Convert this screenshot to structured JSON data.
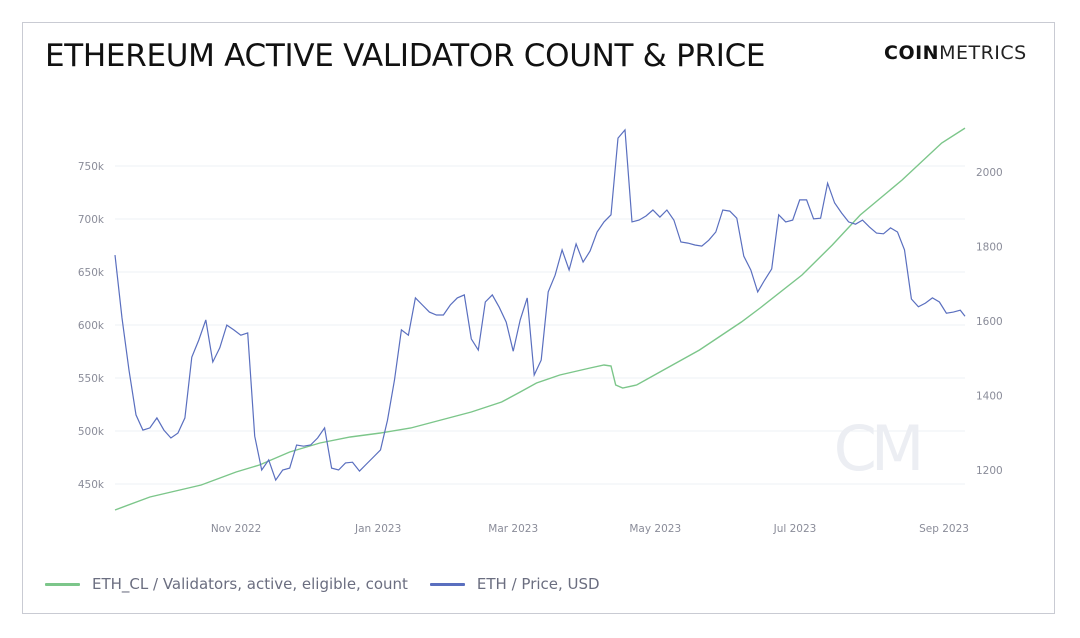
{
  "header": {
    "title": "ETHEREUM ACTIVE VALIDATOR COUNT & PRICE",
    "logo_bold": "COIN",
    "logo_light": "METRICS",
    "watermark": "CM"
  },
  "colors": {
    "validators": "#7cc68a",
    "price": "#5a6fbf",
    "grid": "#eef0f4",
    "tick_text": "#8a8c99"
  },
  "chart_data": {
    "type": "line",
    "title": "ETHEREUM ACTIVE VALIDATOR COUNT & PRICE",
    "xlabel": "",
    "x_unit": "days since ~10 Sep 2022",
    "x_range": [
      0,
      365
    ],
    "x_ticks": [
      {
        "label": "Nov 2022",
        "day": 52
      },
      {
        "label": "Jan 2023",
        "day": 113
      },
      {
        "label": "Mar 2023",
        "day": 171
      },
      {
        "label": "May 2023",
        "day": 232
      },
      {
        "label": "Jul 2023",
        "day": 292
      },
      {
        "label": "Sep 2023",
        "day": 356
      }
    ],
    "y_left": {
      "label": "Validators, active, eligible, count",
      "range": [
        420000,
        790000
      ],
      "ticks": [
        450000,
        500000,
        550000,
        600000,
        650000,
        700000,
        750000
      ],
      "tick_labels": [
        "450k",
        "500k",
        "550k",
        "600k",
        "650k",
        "700k",
        "750k"
      ]
    },
    "y_right": {
      "label": "Price, USD",
      "range": [
        1080,
        2150
      ],
      "ticks": [
        1200,
        1400,
        1600,
        1800,
        2000
      ],
      "tick_labels": [
        "1200",
        "1400",
        "1600",
        "1800",
        "2000"
      ]
    },
    "grid": true,
    "legend_position": "bottom-left",
    "series": [
      {
        "name": "ETH_CL / Validators, active, eligible, count",
        "axis": "left",
        "x": [
          0,
          15,
          37,
          52,
          62,
          75,
          88,
          101,
          114,
          127,
          140,
          153,
          166,
          174,
          181,
          191,
          204,
          210,
          213,
          215,
          218,
          224,
          234,
          251,
          269,
          277,
          295,
          308,
          320,
          338,
          355,
          365
        ],
        "values": [
          425500,
          437700,
          449100,
          461300,
          467900,
          480200,
          488700,
          494300,
          498100,
          502800,
          510400,
          517900,
          527400,
          536800,
          545300,
          552800,
          559400,
          562300,
          561300,
          543400,
          540600,
          543400,
          555700,
          576400,
          602800,
          616000,
          647200,
          675500,
          703800,
          736800,
          771700,
          785800
        ]
      },
      {
        "name": "ETH / Price, USD",
        "axis": "right",
        "x_start": 0,
        "x_step": 3,
        "x_last": 365,
        "values": [
          1777,
          1608,
          1468,
          1348,
          1307,
          1313,
          1340,
          1307,
          1286,
          1299,
          1340,
          1503,
          1549,
          1603,
          1490,
          1528,
          1589,
          1576,
          1562,
          1568,
          1291,
          1200,
          1227,
          1173,
          1200,
          1205,
          1267,
          1264,
          1267,
          1286,
          1313,
          1205,
          1200,
          1219,
          1221,
          1197,
          1216,
          1235,
          1254,
          1334,
          1442,
          1576,
          1562,
          1662,
          1643,
          1624,
          1616,
          1616,
          1643,
          1662,
          1670,
          1552,
          1522,
          1651,
          1670,
          1637,
          1597,
          1519,
          1603,
          1662,
          1455,
          1495,
          1678,
          1723,
          1791,
          1737,
          1807,
          1758,
          1788,
          1839,
          1866,
          1885,
          2091,
          2113,
          1866,
          1871,
          1882,
          1898,
          1879,
          1898,
          1871,
          1812,
          1809,
          1804,
          1801,
          1817,
          1839,
          1898,
          1895,
          1876,
          1774,
          1737,
          1678,
          1710,
          1740,
          1885,
          1866,
          1871,
          1925,
          1925,
          1874,
          1876,
          1970,
          1917,
          1890,
          1866,
          1860,
          1871,
          1852,
          1836,
          1834,
          1850,
          1839,
          1791,
          1659,
          1638,
          1648,
          1662,
          1651,
          1621,
          1624,
          1629,
          1613
        ]
      }
    ]
  },
  "legend": [
    {
      "label": "ETH_CL / Validators, active, eligible, count"
    },
    {
      "label": "ETH / Price, USD"
    }
  ]
}
